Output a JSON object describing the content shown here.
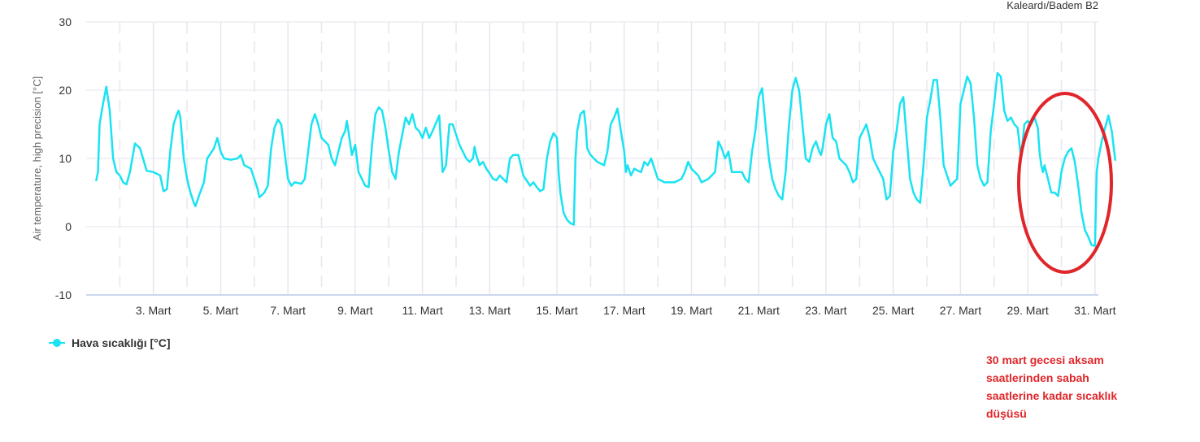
{
  "station": "Kaleardı/Badem B2",
  "legend": {
    "label": "Hava sıcaklığı [°C]"
  },
  "annotation": {
    "lines": [
      "30 mart gecesi aksam",
      "saatlerinden sabah",
      "saatlerine kadar sıcaklık",
      "düşüsü"
    ]
  },
  "colors": {
    "series": "#19e3f2",
    "annotation": "#e0262a",
    "grid": "#e6e6ee",
    "axis": "#ccd6eb"
  },
  "chart_data": {
    "type": "line",
    "title": "",
    "xlabel": "",
    "ylabel": "Air temperature, high precision [°C]",
    "ylim": [
      -10,
      30
    ],
    "yticks": [
      -10,
      0,
      10,
      20,
      30
    ],
    "xlim": [
      1,
      31.1
    ],
    "xticks": [
      {
        "day": 3,
        "label": "3. Mart"
      },
      {
        "day": 5,
        "label": "5. Mart"
      },
      {
        "day": 7,
        "label": "7. Mart"
      },
      {
        "day": 9,
        "label": "9. Mart"
      },
      {
        "day": 11,
        "label": "11. Mart"
      },
      {
        "day": 13,
        "label": "13. Mart"
      },
      {
        "day": 15,
        "label": "15. Mart"
      },
      {
        "day": 17,
        "label": "17. Mart"
      },
      {
        "day": 19,
        "label": "19. Mart"
      },
      {
        "day": 21,
        "label": "21. Mart"
      },
      {
        "day": 23,
        "label": "23. Mart"
      },
      {
        "day": 25,
        "label": "25. Mart"
      },
      {
        "day": 27,
        "label": "27. Mart"
      },
      {
        "day": 29,
        "label": "29. Mart"
      },
      {
        "day": 31,
        "label": "31. Mart"
      }
    ],
    "grid": true,
    "legend_position": "bottom-left",
    "series": [
      {
        "name": "Hava sıcaklığı [°C]",
        "points": [
          [
            1.3,
            6.8
          ],
          [
            1.35,
            8.0
          ],
          [
            1.4,
            15.0
          ],
          [
            1.5,
            18.0
          ],
          [
            1.6,
            20.5
          ],
          [
            1.7,
            17.0
          ],
          [
            1.8,
            10.0
          ],
          [
            1.9,
            8.0
          ],
          [
            2.0,
            7.5
          ],
          [
            2.1,
            6.5
          ],
          [
            2.2,
            6.2
          ],
          [
            2.3,
            8.0
          ],
          [
            2.45,
            12.2
          ],
          [
            2.6,
            11.5
          ],
          [
            2.75,
            9.0
          ],
          [
            2.8,
            8.2
          ],
          [
            3.0,
            8.0
          ],
          [
            3.2,
            7.5
          ],
          [
            3.3,
            5.2
          ],
          [
            3.4,
            5.5
          ],
          [
            3.5,
            11.0
          ],
          [
            3.6,
            15.0
          ],
          [
            3.7,
            16.5
          ],
          [
            3.75,
            17.0
          ],
          [
            3.8,
            16.0
          ],
          [
            3.9,
            10.0
          ],
          [
            4.0,
            7.0
          ],
          [
            4.1,
            5.0
          ],
          [
            4.2,
            3.5
          ],
          [
            4.25,
            3.0
          ],
          [
            4.35,
            4.5
          ],
          [
            4.5,
            6.5
          ],
          [
            4.6,
            10.0
          ],
          [
            4.8,
            11.5
          ],
          [
            4.9,
            13.0
          ],
          [
            5.0,
            11.0
          ],
          [
            5.1,
            10.0
          ],
          [
            5.3,
            9.8
          ],
          [
            5.5,
            10.0
          ],
          [
            5.6,
            10.5
          ],
          [
            5.7,
            9.0
          ],
          [
            5.9,
            8.5
          ],
          [
            6.0,
            7.0
          ],
          [
            6.1,
            5.5
          ],
          [
            6.15,
            4.3
          ],
          [
            6.3,
            5.0
          ],
          [
            6.4,
            6.0
          ],
          [
            6.5,
            11.5
          ],
          [
            6.6,
            14.5
          ],
          [
            6.7,
            15.7
          ],
          [
            6.8,
            15.0
          ],
          [
            6.9,
            11.0
          ],
          [
            7.0,
            7.0
          ],
          [
            7.1,
            6.0
          ],
          [
            7.2,
            6.5
          ],
          [
            7.4,
            6.3
          ],
          [
            7.5,
            7.0
          ],
          [
            7.6,
            11.0
          ],
          [
            7.7,
            15.0
          ],
          [
            7.8,
            16.5
          ],
          [
            7.9,
            15.0
          ],
          [
            8.0,
            13.0
          ],
          [
            8.2,
            12.0
          ],
          [
            8.3,
            10.0
          ],
          [
            8.4,
            9.0
          ],
          [
            8.5,
            11.0
          ],
          [
            8.6,
            13.0
          ],
          [
            8.7,
            14.0
          ],
          [
            8.75,
            15.5
          ],
          [
            8.8,
            14.0
          ],
          [
            8.9,
            10.5
          ],
          [
            9.0,
            12.0
          ],
          [
            9.05,
            10.0
          ],
          [
            9.1,
            8.0
          ],
          [
            9.3,
            6.0
          ],
          [
            9.4,
            5.8
          ],
          [
            9.5,
            12.0
          ],
          [
            9.6,
            16.5
          ],
          [
            9.7,
            17.5
          ],
          [
            9.8,
            17.0
          ],
          [
            9.9,
            14.5
          ],
          [
            10.0,
            11.0
          ],
          [
            10.1,
            8.0
          ],
          [
            10.2,
            7.0
          ],
          [
            10.3,
            11.0
          ],
          [
            10.5,
            16.0
          ],
          [
            10.6,
            15.0
          ],
          [
            10.7,
            16.5
          ],
          [
            10.8,
            14.5
          ],
          [
            10.9,
            14.0
          ],
          [
            11.0,
            13.0
          ],
          [
            11.1,
            14.5
          ],
          [
            11.2,
            13.0
          ],
          [
            11.3,
            14.0
          ],
          [
            11.5,
            16.3
          ],
          [
            11.6,
            8.0
          ],
          [
            11.7,
            9.0
          ],
          [
            11.8,
            15.0
          ],
          [
            11.9,
            15.0
          ],
          [
            12.0,
            13.5
          ],
          [
            12.1,
            12.0
          ],
          [
            12.2,
            11.0
          ],
          [
            12.3,
            10.0
          ],
          [
            12.4,
            9.5
          ],
          [
            12.5,
            10.0
          ],
          [
            12.55,
            11.7
          ],
          [
            12.6,
            10.5
          ],
          [
            12.7,
            9.0
          ],
          [
            12.8,
            9.5
          ],
          [
            12.9,
            8.5
          ],
          [
            13.0,
            7.8
          ],
          [
            13.1,
            7.0
          ],
          [
            13.2,
            6.8
          ],
          [
            13.3,
            7.5
          ],
          [
            13.4,
            7.0
          ],
          [
            13.5,
            6.5
          ],
          [
            13.6,
            10.0
          ],
          [
            13.7,
            10.5
          ],
          [
            13.85,
            10.5
          ],
          [
            13.9,
            9.5
          ],
          [
            14.0,
            7.5
          ],
          [
            14.2,
            6.0
          ],
          [
            14.3,
            6.5
          ],
          [
            14.4,
            5.8
          ],
          [
            14.5,
            5.2
          ],
          [
            14.6,
            5.5
          ],
          [
            14.7,
            10.0
          ],
          [
            14.8,
            12.5
          ],
          [
            14.9,
            13.7
          ],
          [
            15.0,
            13.0
          ],
          [
            15.05,
            8.0
          ],
          [
            15.1,
            5.0
          ],
          [
            15.2,
            2.0
          ],
          [
            15.3,
            1.0
          ],
          [
            15.4,
            0.5
          ],
          [
            15.5,
            0.3
          ],
          [
            15.55,
            10.0
          ],
          [
            15.6,
            14.0
          ],
          [
            15.7,
            16.5
          ],
          [
            15.8,
            17.0
          ],
          [
            15.85,
            15.0
          ],
          [
            15.9,
            11.5
          ],
          [
            16.0,
            10.5
          ],
          [
            16.2,
            9.5
          ],
          [
            16.4,
            9.0
          ],
          [
            16.5,
            11.0
          ],
          [
            16.6,
            15.0
          ],
          [
            16.7,
            16.0
          ],
          [
            16.8,
            17.3
          ],
          [
            16.9,
            14.0
          ],
          [
            17.0,
            11.0
          ],
          [
            17.05,
            8.0
          ],
          [
            17.1,
            9.0
          ],
          [
            17.2,
            7.5
          ],
          [
            17.3,
            8.5
          ],
          [
            17.4,
            8.2
          ],
          [
            17.5,
            8.0
          ],
          [
            17.6,
            9.5
          ],
          [
            17.7,
            9.0
          ],
          [
            17.8,
            10.0
          ],
          [
            17.9,
            8.5
          ],
          [
            18.0,
            7.0
          ],
          [
            18.2,
            6.5
          ],
          [
            18.5,
            6.5
          ],
          [
            18.7,
            7.0
          ],
          [
            18.8,
            8.0
          ],
          [
            18.9,
            9.5
          ],
          [
            19.0,
            8.5
          ],
          [
            19.1,
            8.0
          ],
          [
            19.2,
            7.5
          ],
          [
            19.3,
            6.5
          ],
          [
            19.5,
            7.0
          ],
          [
            19.6,
            7.5
          ],
          [
            19.7,
            8.0
          ],
          [
            19.8,
            12.5
          ],
          [
            19.9,
            11.5
          ],
          [
            20.0,
            10.0
          ],
          [
            20.1,
            11.0
          ],
          [
            20.2,
            8.0
          ],
          [
            20.5,
            8.0
          ],
          [
            20.6,
            7.0
          ],
          [
            20.7,
            6.5
          ],
          [
            20.8,
            11.0
          ],
          [
            20.9,
            14.0
          ],
          [
            21.0,
            19.0
          ],
          [
            21.1,
            20.3
          ],
          [
            21.2,
            15.0
          ],
          [
            21.3,
            10.0
          ],
          [
            21.4,
            7.0
          ],
          [
            21.5,
            5.5
          ],
          [
            21.6,
            4.5
          ],
          [
            21.7,
            4.0
          ],
          [
            21.8,
            8.0
          ],
          [
            21.9,
            15.0
          ],
          [
            22.0,
            20.0
          ],
          [
            22.1,
            21.8
          ],
          [
            22.2,
            20.0
          ],
          [
            22.3,
            15.0
          ],
          [
            22.4,
            10.0
          ],
          [
            22.5,
            9.5
          ],
          [
            22.6,
            11.5
          ],
          [
            22.7,
            12.5
          ],
          [
            22.8,
            11.0
          ],
          [
            22.85,
            10.5
          ],
          [
            22.9,
            11.5
          ],
          [
            23.0,
            15.0
          ],
          [
            23.1,
            16.5
          ],
          [
            23.2,
            13.0
          ],
          [
            23.3,
            12.5
          ],
          [
            23.4,
            10.0
          ],
          [
            23.5,
            9.5
          ],
          [
            23.6,
            9.0
          ],
          [
            23.7,
            8.0
          ],
          [
            23.8,
            6.5
          ],
          [
            23.9,
            7.0
          ],
          [
            24.0,
            13.0
          ],
          [
            24.2,
            15.0
          ],
          [
            24.3,
            13.0
          ],
          [
            24.4,
            10.0
          ],
          [
            24.5,
            9.0
          ],
          [
            24.6,
            8.0
          ],
          [
            24.7,
            7.0
          ],
          [
            24.8,
            4.0
          ],
          [
            24.9,
            4.5
          ],
          [
            25.0,
            11.0
          ],
          [
            25.1,
            14.0
          ],
          [
            25.2,
            18.0
          ],
          [
            25.3,
            19.0
          ],
          [
            25.4,
            13.0
          ],
          [
            25.5,
            7.0
          ],
          [
            25.6,
            5.0
          ],
          [
            25.7,
            4.0
          ],
          [
            25.8,
            3.5
          ],
          [
            25.9,
            9.0
          ],
          [
            26.0,
            16.0
          ],
          [
            26.1,
            18.5
          ],
          [
            26.2,
            21.5
          ],
          [
            26.3,
            21.5
          ],
          [
            26.4,
            16.0
          ],
          [
            26.5,
            9.0
          ],
          [
            26.6,
            7.5
          ],
          [
            26.7,
            6.0
          ],
          [
            26.8,
            6.5
          ],
          [
            26.9,
            7.0
          ],
          [
            27.0,
            18.0
          ],
          [
            27.1,
            20.0
          ],
          [
            27.2,
            22.0
          ],
          [
            27.3,
            21.0
          ],
          [
            27.4,
            16.0
          ],
          [
            27.5,
            9.0
          ],
          [
            27.6,
            7.0
          ],
          [
            27.7,
            6.0
          ],
          [
            27.8,
            6.5
          ],
          [
            27.9,
            14.0
          ],
          [
            28.0,
            18.0
          ],
          [
            28.1,
            22.5
          ],
          [
            28.2,
            22.0
          ],
          [
            28.3,
            17.0
          ],
          [
            28.4,
            15.5
          ],
          [
            28.5,
            16.0
          ],
          [
            28.6,
            15.0
          ],
          [
            28.7,
            14.5
          ],
          [
            28.8,
            10.0
          ],
          [
            28.9,
            15.0
          ],
          [
            29.0,
            15.5
          ],
          [
            29.1,
            15.0
          ],
          [
            29.2,
            16.0
          ],
          [
            29.3,
            14.5
          ],
          [
            29.35,
            11.0
          ],
          [
            29.4,
            9.0
          ],
          [
            29.45,
            8.0
          ],
          [
            29.5,
            9.0
          ],
          [
            29.6,
            7.0
          ],
          [
            29.7,
            5.0
          ],
          [
            29.8,
            5.0
          ],
          [
            29.9,
            4.5
          ],
          [
            30.0,
            8.0
          ],
          [
            30.1,
            10.0
          ],
          [
            30.2,
            11.0
          ],
          [
            30.3,
            11.5
          ],
          [
            30.4,
            9.5
          ],
          [
            30.5,
            6.0
          ],
          [
            30.6,
            2.0
          ],
          [
            30.7,
            -0.5
          ],
          [
            30.8,
            -1.5
          ],
          [
            30.9,
            -2.7
          ],
          [
            31.0,
            -2.8
          ],
          [
            31.05,
            8.0
          ],
          [
            31.1,
            10.0
          ],
          [
            31.2,
            12.5
          ],
          [
            31.3,
            14.5
          ],
          [
            31.4,
            16.3
          ],
          [
            31.5,
            14.0
          ],
          [
            31.6,
            9.8
          ]
        ]
      }
    ]
  }
}
